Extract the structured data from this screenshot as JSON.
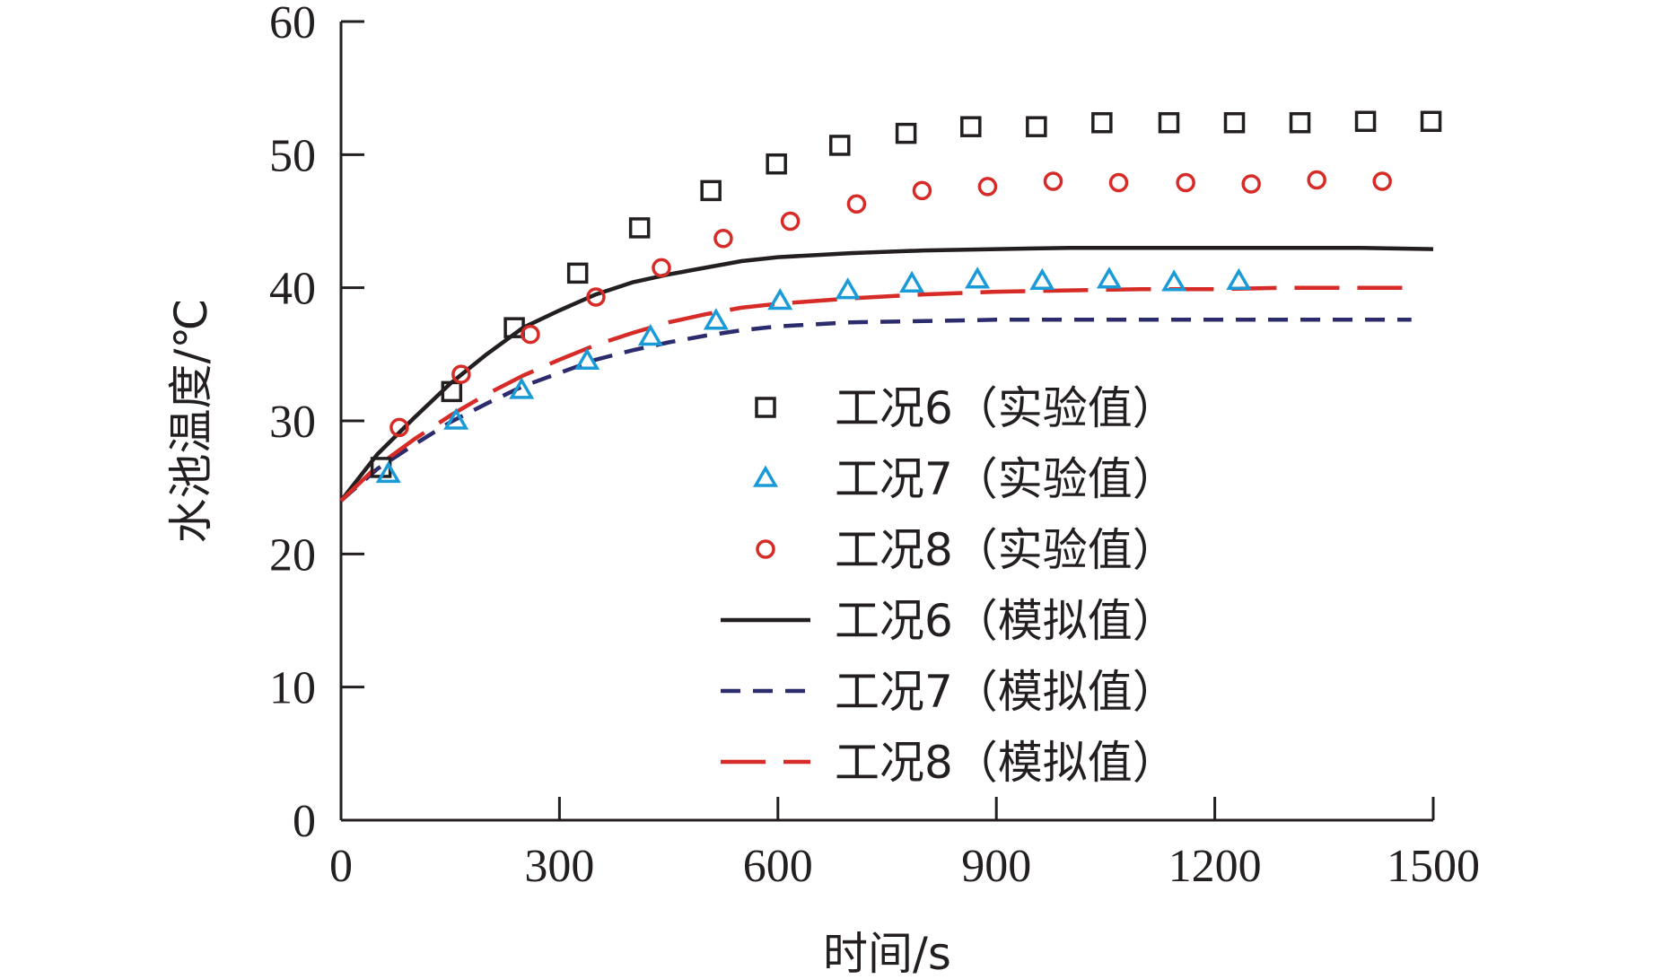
{
  "chart_data": {
    "type": "scatter",
    "xlabel": "时间/s",
    "ylabel": "水池温度/℃",
    "xlim": [
      0,
      1500
    ],
    "ylim": [
      0,
      60
    ],
    "x_ticks": [
      0,
      300,
      600,
      900,
      1200,
      1500
    ],
    "y_ticks": [
      0,
      10,
      20,
      30,
      40,
      50,
      60
    ],
    "grid": false,
    "legend_position": "center-right",
    "series": [
      {
        "name": "工况6（实验值）",
        "kind": "markers",
        "marker": "square",
        "color": "#231f20",
        "x": [
          55,
          152,
          238,
          325,
          410,
          508,
          598,
          685,
          776,
          865,
          955,
          1045,
          1137,
          1227,
          1317,
          1407,
          1497
        ],
        "y": [
          26.5,
          32.2,
          37.0,
          41.1,
          44.5,
          47.3,
          49.3,
          50.7,
          51.6,
          52.1,
          52.1,
          52.4,
          52.4,
          52.4,
          52.4,
          52.5,
          52.5
        ]
      },
      {
        "name": "工况7（实验值）",
        "kind": "markers",
        "marker": "triangle",
        "color": "#1a9bd7",
        "x": [
          65,
          158,
          248,
          338,
          425,
          515,
          603,
          696,
          784,
          874,
          963,
          1055,
          1144,
          1233
        ],
        "y": [
          26.0,
          30.0,
          32.3,
          34.5,
          36.3,
          37.5,
          39.0,
          39.8,
          40.3,
          40.6,
          40.5,
          40.6,
          40.4,
          40.5
        ]
      },
      {
        "name": "工况8（实验值）",
        "kind": "markers",
        "marker": "circle",
        "color": "#d62b27",
        "x": [
          80,
          165,
          260,
          350,
          440,
          525,
          617,
          708,
          798,
          888,
          978,
          1068,
          1160,
          1250,
          1340,
          1430
        ],
        "y": [
          29.5,
          33.5,
          36.5,
          39.3,
          41.5,
          43.7,
          45.0,
          46.3,
          47.3,
          47.6,
          48.0,
          47.9,
          47.9,
          47.8,
          48.1,
          48.0
        ]
      },
      {
        "name": "工况6（模拟值）",
        "kind": "line",
        "dash": "solid",
        "color": "#231f20",
        "x": [
          0,
          50,
          100,
          150,
          200,
          250,
          300,
          350,
          400,
          450,
          500,
          550,
          600,
          700,
          800,
          900,
          1000,
          1100,
          1200,
          1300,
          1400,
          1500
        ],
        "y": [
          24.0,
          27.5,
          30.2,
          32.8,
          35.0,
          37.0,
          38.3,
          39.5,
          40.4,
          41.0,
          41.5,
          42.0,
          42.3,
          42.6,
          42.8,
          42.9,
          43.0,
          43.0,
          43.0,
          43.0,
          43.0,
          42.9
        ]
      },
      {
        "name": "工况7（模拟值）",
        "kind": "line",
        "dash": "short",
        "color": "#2b2b6e",
        "x": [
          0,
          50,
          100,
          150,
          200,
          250,
          300,
          350,
          400,
          450,
          500,
          550,
          600,
          700,
          800,
          900,
          1000,
          1100,
          1200,
          1300,
          1400,
          1470
        ],
        "y": [
          24.0,
          26.4,
          28.2,
          29.9,
          31.3,
          32.6,
          33.6,
          34.6,
          35.3,
          35.9,
          36.4,
          36.8,
          37.1,
          37.4,
          37.5,
          37.6,
          37.6,
          37.6,
          37.6,
          37.6,
          37.6,
          37.6
        ]
      },
      {
        "name": "工况8（模拟值）",
        "kind": "line",
        "dash": "long",
        "color": "#d62b27",
        "x": [
          0,
          50,
          100,
          150,
          200,
          250,
          300,
          350,
          400,
          450,
          500,
          550,
          600,
          700,
          800,
          900,
          1000,
          1100,
          1200,
          1300,
          1400,
          1470
        ],
        "y": [
          24.0,
          26.6,
          28.6,
          30.4,
          32.0,
          33.4,
          34.6,
          35.7,
          36.6,
          37.4,
          38.0,
          38.5,
          38.8,
          39.2,
          39.5,
          39.7,
          39.8,
          39.9,
          39.9,
          40.0,
          40.0,
          40.0
        ]
      }
    ]
  }
}
